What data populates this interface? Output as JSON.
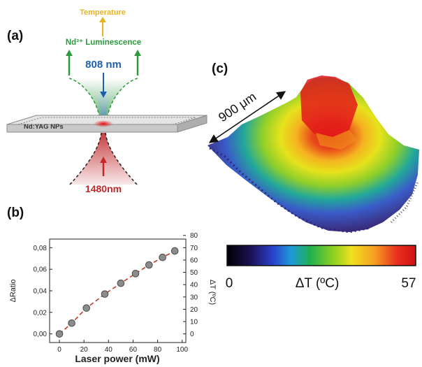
{
  "panels": {
    "a": {
      "label": "(a)",
      "temperature": "Temperature",
      "luminescence": "Nd³⁺ Luminescence",
      "excitation": "808 nm",
      "sample": "Nd:YAG NPs",
      "heating": "1480nm"
    },
    "b": {
      "label": "(b)"
    },
    "c": {
      "label": "(c)",
      "scale": "900 μm",
      "colorbar_title": "ΔT (ºC)",
      "colorbar_min": "0",
      "colorbar_max": "57"
    }
  },
  "colors": {
    "temperature": "#e6b422",
    "luminescence": "#2e9a3e",
    "excitation": "#1f5fae",
    "heating": "#c0282a",
    "fit_line": "#c0392b",
    "marker_fill": "#8c8c8c"
  },
  "chart_data": {
    "type": "scatter",
    "xlabel": "Laser power (mW)",
    "ylabel": "ΔRatio",
    "y2label": "ΔT (ºC)",
    "xlim": [
      -8,
      103
    ],
    "xticks": [
      "0",
      "20",
      "40",
      "60",
      "80",
      "100"
    ],
    "ylim": [
      -0.008,
      0.088
    ],
    "yticks": [
      "0,00",
      "0,02",
      "0,04",
      "0,06",
      "0,08"
    ],
    "y2lim": [
      -7,
      77
    ],
    "y2ticks": [
      "0",
      "10",
      "20",
      "30",
      "40",
      "50",
      "60",
      "70",
      "80"
    ],
    "grid": false,
    "series": [
      {
        "x": [
          0,
          10,
          22,
          37,
          50,
          62,
          73,
          84,
          94
        ],
        "y": [
          0.0,
          0.01,
          0.024,
          0.037,
          0.047,
          0.056,
          0.064,
          0.071,
          0.077
        ]
      }
    ],
    "fit_line": "dashed"
  }
}
